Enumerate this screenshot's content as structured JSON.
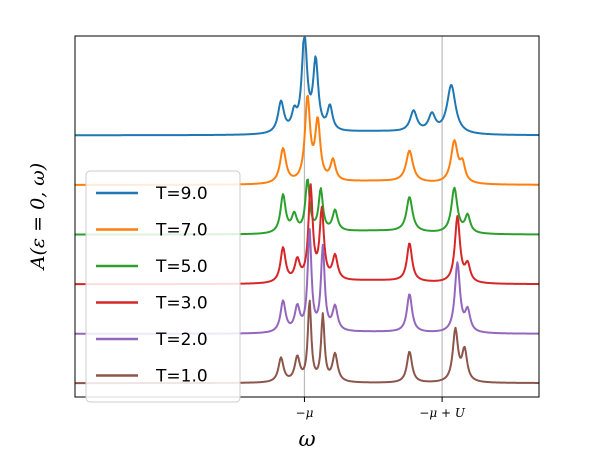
{
  "chart_data": {
    "type": "line",
    "title": "",
    "xlabel": "ω",
    "ylabel": "A(ε = 0, ω)",
    "x_ticks": [
      {
        "value": -0.35,
        "label": "−μ"
      },
      {
        "value": 1.0,
        "label": "−μ + U"
      }
    ],
    "xlim": [
      -2.6,
      1.95
    ],
    "ylim": [
      -0.04,
      1.0
    ],
    "yticks_visible": false,
    "vlines": [
      -0.35,
      1.0
    ],
    "legend": {
      "position": "lower-left"
    },
    "series": [
      {
        "name": "T=9.0",
        "color": "#1f77b4",
        "offset": 0.714,
        "peaks": [
          [
            -0.35,
            0.28,
            0.03
          ],
          [
            -0.24,
            0.2,
            0.03
          ],
          [
            -0.58,
            0.09,
            0.035
          ],
          [
            -0.1,
            0.07,
            0.03
          ],
          [
            -0.45,
            0.05,
            0.03
          ],
          [
            0.72,
            0.06,
            0.04
          ],
          [
            1.09,
            0.14,
            0.05
          ],
          [
            0.9,
            0.05,
            0.04
          ]
        ],
        "base": 0.01
      },
      {
        "name": "T=7.0",
        "color": "#ff7f0e",
        "offset": 0.571,
        "peaks": [
          [
            -0.32,
            0.24,
            0.03
          ],
          [
            -0.22,
            0.17,
            0.03
          ],
          [
            -0.56,
            0.1,
            0.035
          ],
          [
            -0.07,
            0.06,
            0.03
          ],
          [
            0.68,
            0.09,
            0.04
          ],
          [
            1.12,
            0.12,
            0.04
          ],
          [
            1.2,
            0.05,
            0.03
          ]
        ],
        "base": 0.01
      },
      {
        "name": "T=5.0",
        "color": "#2ca02c",
        "offset": 0.428,
        "peaks": [
          [
            -0.32,
            0.15,
            0.025
          ],
          [
            -0.19,
            0.12,
            0.025
          ],
          [
            -0.56,
            0.11,
            0.03
          ],
          [
            -0.05,
            0.06,
            0.03
          ],
          [
            -0.45,
            0.05,
            0.03
          ],
          [
            0.68,
            0.1,
            0.035
          ],
          [
            1.12,
            0.13,
            0.035
          ],
          [
            1.25,
            0.05,
            0.03
          ]
        ],
        "base": 0.01
      },
      {
        "name": "T=3.0",
        "color": "#d62728",
        "offset": 0.285,
        "peaks": [
          [
            -0.29,
            0.27,
            0.025
          ],
          [
            -0.18,
            0.2,
            0.025
          ],
          [
            -0.56,
            0.1,
            0.03
          ],
          [
            -0.05,
            0.07,
            0.03
          ],
          [
            -0.42,
            0.06,
            0.03
          ],
          [
            0.68,
            0.11,
            0.03
          ],
          [
            1.15,
            0.19,
            0.03
          ],
          [
            1.25,
            0.05,
            0.03
          ]
        ],
        "base": 0.01
      },
      {
        "name": "T=2.0",
        "color": "#9467bd",
        "offset": 0.142,
        "peaks": [
          [
            -0.3,
            0.29,
            0.022
          ],
          [
            -0.17,
            0.24,
            0.022
          ],
          [
            -0.56,
            0.09,
            0.03
          ],
          [
            -0.05,
            0.07,
            0.03
          ],
          [
            -0.42,
            0.07,
            0.03
          ],
          [
            0.68,
            0.11,
            0.03
          ],
          [
            1.15,
            0.2,
            0.03
          ],
          [
            1.25,
            0.06,
            0.03
          ]
        ],
        "base": 0.005
      },
      {
        "name": "T=1.0",
        "color": "#8c564b",
        "offset": 0.0,
        "peaks": [
          [
            -0.3,
            0.23,
            0.02
          ],
          [
            -0.17,
            0.19,
            0.02
          ],
          [
            -0.58,
            0.07,
            0.03
          ],
          [
            -0.05,
            0.08,
            0.03
          ],
          [
            -0.42,
            0.07,
            0.03
          ],
          [
            0.68,
            0.09,
            0.03
          ],
          [
            1.13,
            0.15,
            0.03
          ],
          [
            1.22,
            0.09,
            0.03
          ]
        ],
        "base": 0.0
      }
    ]
  }
}
